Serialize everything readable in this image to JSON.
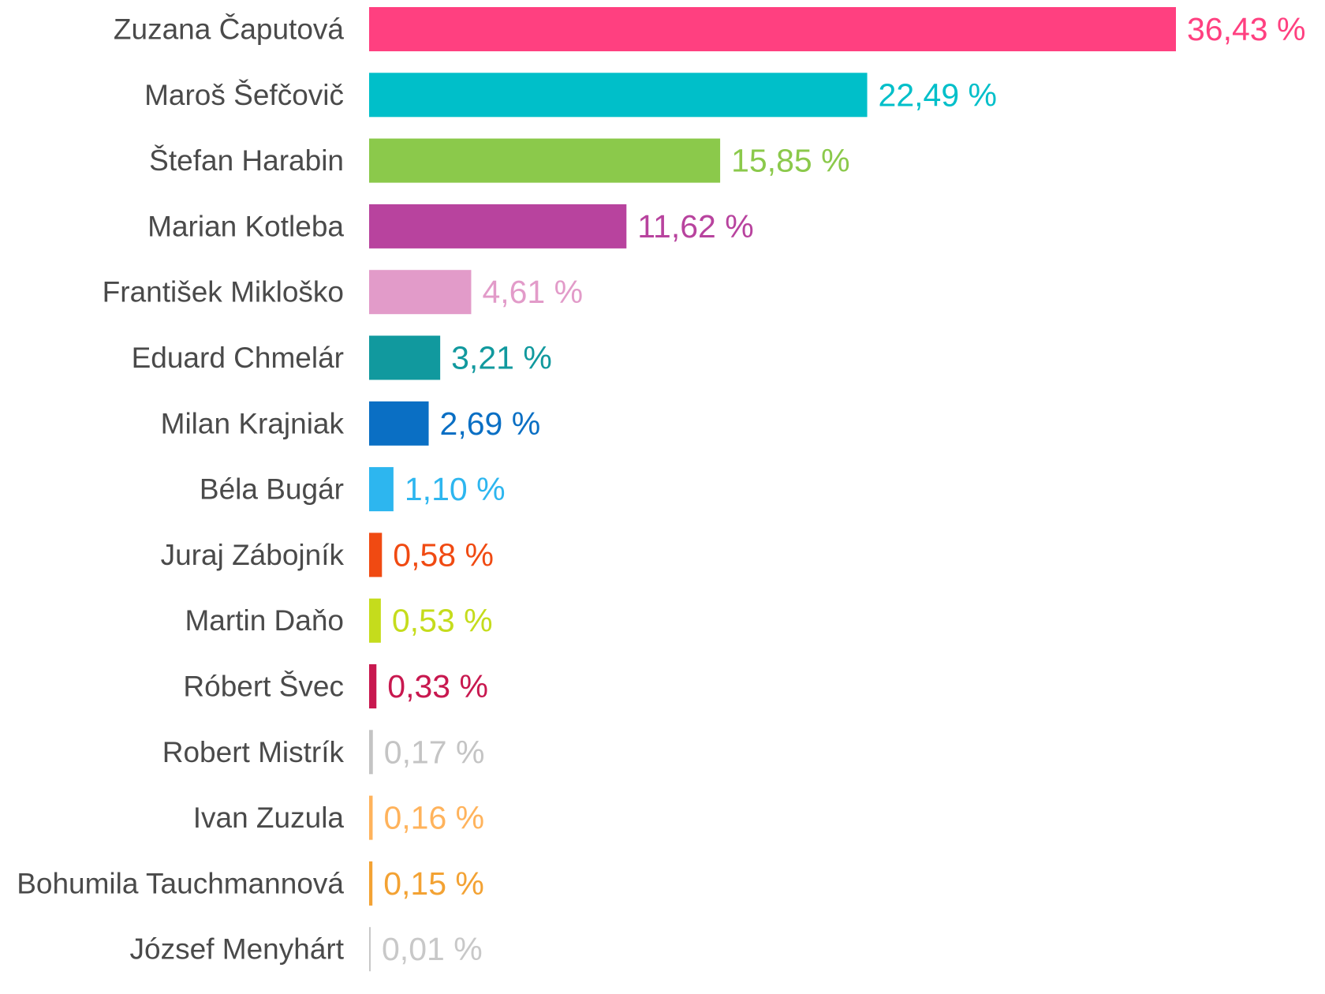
{
  "chart_data": {
    "type": "bar",
    "orientation": "horizontal",
    "grid": false,
    "xlim": [
      0,
      36.43
    ],
    "categories": [
      "Zuzana Čaputová",
      "Maroš Šefčovič",
      "Štefan Harabin",
      "Marian Kotleba",
      "František Mikloško",
      "Eduard Chmelár",
      "Milan Krajniak",
      "Béla Bugár",
      "Juraj Zábojník",
      "Martin Daňo",
      "Róbert Švec",
      "Robert Mistrík",
      "Ivan Zuzula",
      "Bohumila Tauchmannová",
      "József Menyhárt"
    ],
    "values": [
      36.43,
      22.49,
      15.85,
      11.62,
      4.61,
      3.21,
      2.69,
      1.1,
      0.58,
      0.53,
      0.33,
      0.17,
      0.16,
      0.15,
      0.01
    ],
    "value_labels": [
      "36,43 %",
      "22,49 %",
      "15,85 %",
      "11,62 %",
      "4,61 %",
      "3,21 %",
      "2,69 %",
      "1,10 %",
      "0,58 %",
      "0,53 %",
      "0,33 %",
      "0,17 %",
      "0,16 %",
      "0,15 %",
      "0,01 %"
    ],
    "colors": [
      "#ff4080",
      "#00bfc9",
      "#8bc94b",
      "#b8439e",
      "#e29bc9",
      "#11999e",
      "#0a6fc4",
      "#2db6ef",
      "#f04a12",
      "#c5dc1c",
      "#c8184f",
      "#c4c4c4",
      "#ffb35c",
      "#f3a233",
      "#c8c8c8"
    ]
  }
}
